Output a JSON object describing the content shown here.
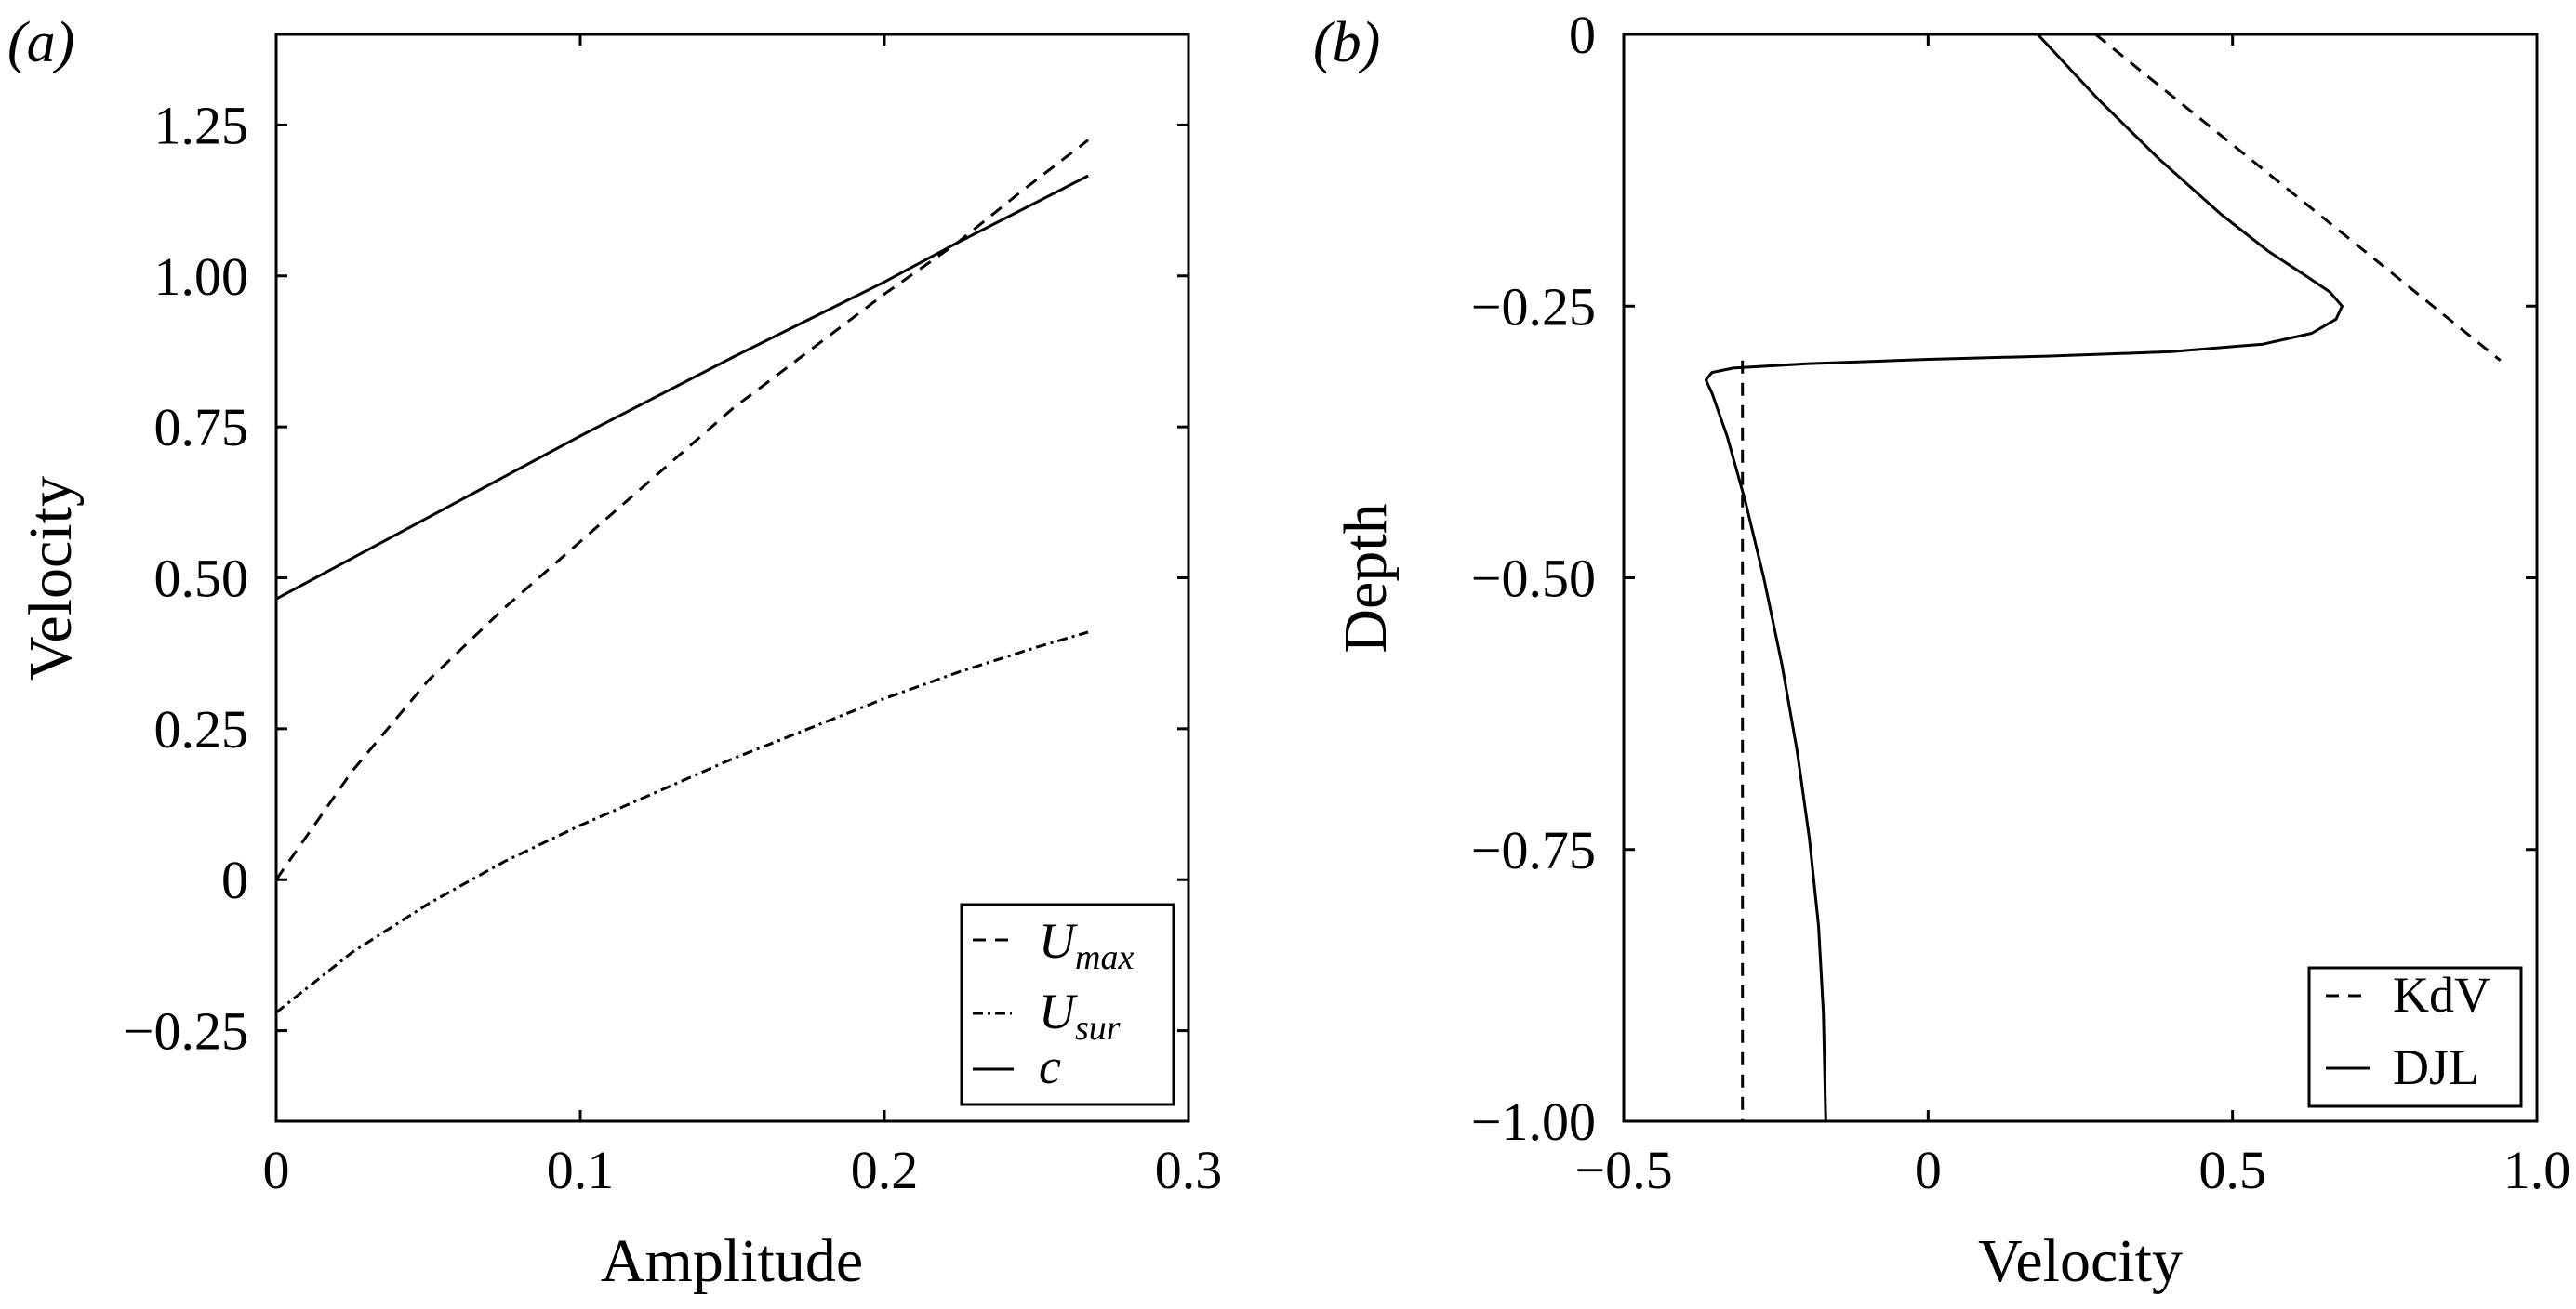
{
  "figure": {
    "panels": [
      {
        "id": "a",
        "label": "(a)"
      },
      {
        "id": "b",
        "label": "(b)"
      }
    ]
  },
  "chart_data": [
    {
      "panel": "(a)",
      "type": "line",
      "title": "",
      "xlabel": "Amplitude",
      "ylabel": "Velocity",
      "xlim": [
        0,
        0.3
      ],
      "ylim": [
        -0.4,
        1.4
      ],
      "xticks": [
        0,
        0.1,
        0.2,
        0.3
      ],
      "xtick_labels": [
        "0",
        "0.1",
        "0.2",
        "0.3"
      ],
      "yticks": [
        -0.25,
        0,
        0.25,
        0.5,
        0.75,
        1.0,
        1.25
      ],
      "ytick_labels": [
        "−0.25",
        "0",
        "0.25",
        "0.50",
        "0.75",
        "1.00",
        "1.25"
      ],
      "grid": false,
      "legend_position": "lower right",
      "series": [
        {
          "name": "U_max",
          "label_main": "U",
          "label_sub": "max",
          "style": "dashed",
          "x": [
            0,
            0.025,
            0.05,
            0.075,
            0.1,
            0.125,
            0.15,
            0.175,
            0.2,
            0.224,
            0.245,
            0.267
          ],
          "y": [
            0,
            0.18,
            0.33,
            0.45,
            0.56,
            0.67,
            0.78,
            0.875,
            0.97,
            1.055,
            1.14,
            1.225
          ]
        },
        {
          "name": "U_sur",
          "label_main": "U",
          "label_sub": "sur",
          "style": "dashdot",
          "x": [
            0,
            0.025,
            0.05,
            0.075,
            0.1,
            0.125,
            0.15,
            0.175,
            0.2,
            0.225,
            0.25,
            0.267
          ],
          "y": [
            -0.22,
            -0.12,
            -0.04,
            0.03,
            0.09,
            0.145,
            0.2,
            0.25,
            0.3,
            0.345,
            0.385,
            0.41
          ]
        },
        {
          "name": "c",
          "label_main": "c",
          "label_sub": "",
          "style": "solid",
          "x": [
            0,
            0.05,
            0.1,
            0.15,
            0.2,
            0.224,
            0.267
          ],
          "y": [
            0.465,
            0.6,
            0.735,
            0.865,
            0.99,
            1.055,
            1.166
          ]
        }
      ]
    },
    {
      "panel": "(b)",
      "type": "line",
      "title": "",
      "xlabel": "Velocity",
      "ylabel": "Depth",
      "xlim": [
        -0.5,
        1.0
      ],
      "ylim": [
        -1.0,
        0
      ],
      "xticks": [
        -0.5,
        0,
        0.5,
        1.0
      ],
      "xtick_labels": [
        "−0.5",
        "0",
        "0.5",
        "1.0"
      ],
      "yticks": [
        -1.0,
        -0.75,
        -0.5,
        -0.25,
        0
      ],
      "ytick_labels": [
        "−1.00",
        "−0.75",
        "−0.50",
        "−0.25",
        "0"
      ],
      "grid": false,
      "legend_position": "lower right",
      "series": [
        {
          "name": "KdV",
          "style": "dashed",
          "x": [
            0.275,
            0.94,
            null,
            -0.305,
            -0.305
          ],
          "y": [
            0,
            -0.3,
            null,
            -0.3,
            -1.0
          ]
        },
        {
          "name": "DJL",
          "style": "solid",
          "x": [
            0.18,
            0.28,
            0.38,
            0.48,
            0.56,
            0.62,
            0.66,
            0.68,
            0.67,
            0.63,
            0.55,
            0.4,
            0.2,
            0.0,
            -0.2,
            -0.32,
            -0.355,
            -0.365,
            -0.355,
            -0.33,
            -0.3,
            -0.27,
            -0.24,
            -0.215,
            -0.195,
            -0.18,
            -0.172,
            -0.168
          ],
          "y": [
            0,
            -0.06,
            -0.115,
            -0.165,
            -0.2,
            -0.222,
            -0.237,
            -0.25,
            -0.262,
            -0.275,
            -0.285,
            -0.292,
            -0.296,
            -0.299,
            -0.303,
            -0.307,
            -0.311,
            -0.318,
            -0.33,
            -0.37,
            -0.43,
            -0.5,
            -0.58,
            -0.66,
            -0.74,
            -0.82,
            -0.9,
            -1.0
          ]
        }
      ]
    }
  ]
}
